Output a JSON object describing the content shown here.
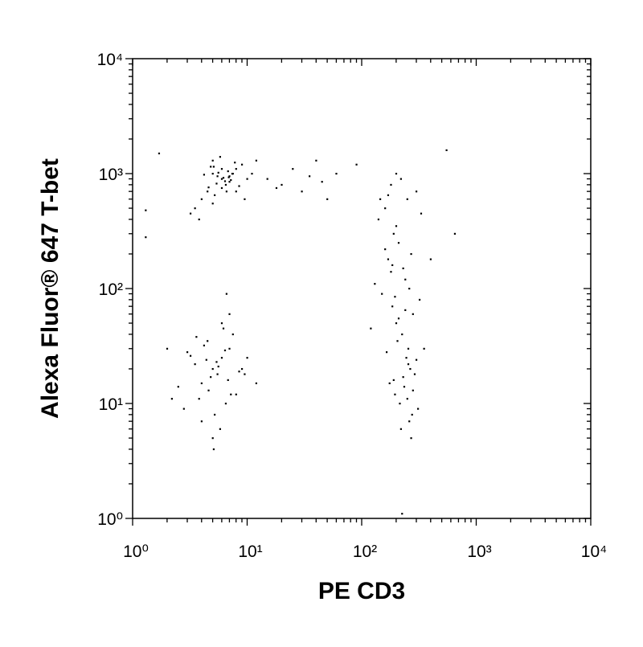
{
  "chart_data": {
    "type": "scatter",
    "xlabel": "PE CD3",
    "ylabel": "Alexa Fluor® 647 T-bet",
    "log_x": true,
    "log_y": true,
    "color": "#000000",
    "xlim": [
      1,
      10000
    ],
    "ylim": [
      1,
      10000
    ],
    "xticks": [
      {
        "value": 1,
        "label": "10⁰"
      },
      {
        "value": 10,
        "label": "10¹"
      },
      {
        "value": 100,
        "label": "10²"
      },
      {
        "value": 1000,
        "label": "10³"
      },
      {
        "value": 10000,
        "label": "10⁴"
      }
    ],
    "yticks": [
      {
        "value": 1,
        "label": "10⁰"
      },
      {
        "value": 10,
        "label": "10¹"
      },
      {
        "value": 100,
        "label": "10²"
      },
      {
        "value": 1000,
        "label": "10³"
      },
      {
        "value": 10000,
        "label": "10⁴"
      }
    ],
    "x": [
      6,
      5,
      7,
      4.5,
      8,
      5.5,
      6.5,
      4,
      9,
      7.5,
      5,
      6,
      3.5,
      10,
      6.8,
      5.2,
      7.2,
      4.8,
      8.5,
      6.2,
      5.8,
      3.2,
      11,
      6.6,
      4.2,
      7.8,
      5.4,
      9.5,
      6,
      5,
      7,
      4.6,
      12,
      5.6,
      6.4,
      3.8,
      8,
      6.9,
      5.1,
      7.4,
      5,
      6,
      4,
      7,
      5.5,
      3.5,
      8,
      4.5,
      6.5,
      3,
      9,
      5.2,
      2.5,
      7.5,
      4.8,
      6,
      10,
      5.8,
      3.8,
      4.2,
      6.8,
      5.4,
      2.8,
      7,
      4.6,
      8.5,
      5,
      3.2,
      6.2,
      12,
      4,
      5.6,
      7.2,
      3.6,
      6.4,
      4.4,
      9.5,
      5.1,
      2.2,
      6.6,
      200,
      180,
      250,
      220,
      160,
      300,
      190,
      270,
      140,
      230,
      210,
      260,
      170,
      240,
      320,
      150,
      280,
      200,
      185,
      225,
      350,
      130,
      245,
      205,
      265,
      175,
      290,
      195,
      215,
      255,
      165,
      235,
      310,
      120,
      275,
      190,
      220,
      250,
      180,
      200,
      160,
      240,
      280,
      210,
      230,
      260,
      145,
      330,
      195,
      270,
      185,
      225,
      255,
      170,
      300,
      15,
      20,
      25,
      30,
      40,
      50,
      35,
      60,
      18,
      45,
      1.3,
      1.7,
      1.3,
      2,
      650,
      550,
      400,
      90
    ],
    "values": [
      900,
      1000,
      850,
      700,
      1100,
      950,
      800,
      600,
      1200,
      1000,
      1300,
      750,
      500,
      900,
      1050,
      650,
      880,
      1150,
      780,
      920,
      1400,
      450,
      1000,
      700,
      980,
      1250,
      820,
      600,
      1100,
      550,
      950,
      760,
      1300,
      1020,
      860,
      400,
      700,
      930,
      1150,
      1000,
      20,
      25,
      15,
      30,
      18,
      22,
      12,
      35,
      10,
      28,
      20,
      8,
      14,
      40,
      17,
      50,
      25,
      6,
      11,
      32,
      16,
      23,
      9,
      60,
      13,
      19,
      5,
      26,
      45,
      15,
      7,
      21,
      12,
      38,
      29,
      24,
      18,
      4,
      11,
      90,
      1000,
      800,
      600,
      900,
      500,
      700,
      300,
      200,
      400,
      150,
      250,
      100,
      180,
      120,
      80,
      90,
      60,
      50,
      70,
      40,
      30,
      110,
      25,
      35,
      20,
      15,
      18,
      12,
      10,
      22,
      28,
      14,
      9,
      45,
      8,
      16,
      6,
      11,
      140,
      350,
      220,
      65,
      13,
      55,
      17,
      7,
      600,
      450,
      85,
      5,
      160,
      1.1,
      30,
      650,
      24,
      900,
      800,
      1100,
      700,
      1300,
      600,
      950,
      1000,
      750,
      850,
      280,
      1500,
      480,
      30,
      300,
      1600,
      180,
      1200
    ]
  }
}
